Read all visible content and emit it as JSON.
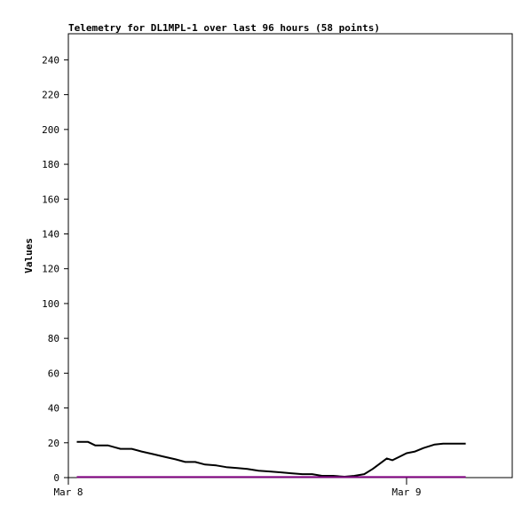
{
  "chart_data": {
    "type": "line",
    "title": "Telemetry for DL1MPL-1 over last 96 hours (58 points)",
    "ylabel": "Values",
    "xlabel": "",
    "x_ticks": [
      {
        "label": "Mar 8",
        "x": 0
      },
      {
        "label": "Mar 9",
        "x": 24
      }
    ],
    "xlim": [
      0,
      31.5
    ],
    "ylim": [
      0,
      255
    ],
    "y_ticks": [
      0,
      20,
      40,
      60,
      80,
      100,
      120,
      140,
      160,
      180,
      200,
      220,
      240
    ],
    "grid": false,
    "series": [
      {
        "color": "#000000",
        "points": [
          [
            0.6,
            20.5
          ],
          [
            1.4,
            20.5
          ],
          [
            1.9,
            18.5
          ],
          [
            2.8,
            18.5
          ],
          [
            3.7,
            16.5
          ],
          [
            4.5,
            16.5
          ],
          [
            5.2,
            15
          ],
          [
            6.0,
            13.5
          ],
          [
            6.8,
            12
          ],
          [
            7.6,
            10.5
          ],
          [
            8.3,
            9
          ],
          [
            9.0,
            9
          ],
          [
            9.7,
            7.5
          ],
          [
            10.5,
            7
          ],
          [
            11.2,
            6
          ],
          [
            12.0,
            5.5
          ],
          [
            12.7,
            5
          ],
          [
            13.5,
            4
          ],
          [
            14.3,
            3.5
          ],
          [
            15.1,
            3
          ],
          [
            15.8,
            2.5
          ],
          [
            16.6,
            2
          ],
          [
            17.3,
            2
          ],
          [
            18.0,
            1
          ],
          [
            18.8,
            1
          ],
          [
            19.6,
            0.5
          ],
          [
            20.3,
            1
          ],
          [
            21.0,
            2
          ],
          [
            21.6,
            5
          ],
          [
            22.1,
            8
          ],
          [
            22.6,
            11
          ],
          [
            23.0,
            10
          ],
          [
            23.5,
            12
          ],
          [
            24.0,
            14
          ],
          [
            24.6,
            15
          ],
          [
            25.2,
            17
          ],
          [
            26.0,
            19
          ],
          [
            26.6,
            19.5
          ],
          [
            27.4,
            19.5
          ],
          [
            28.2,
            19.5
          ]
        ]
      },
      {
        "color": "#800080",
        "points": [
          [
            0.6,
            0.3
          ],
          [
            28.2,
            0.3
          ]
        ]
      }
    ]
  }
}
